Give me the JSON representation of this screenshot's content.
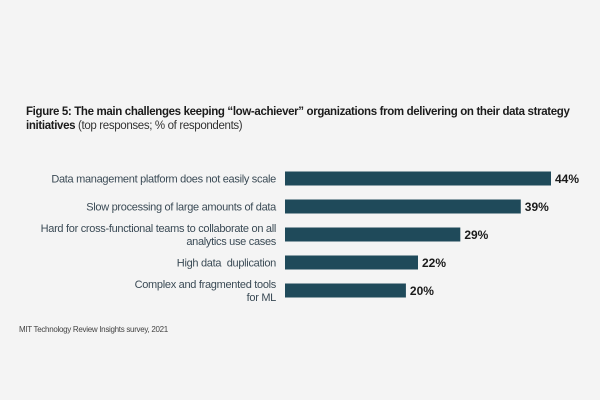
{
  "chart_data": {
    "type": "bar",
    "orientation": "horizontal",
    "title_bold": "Figure 5: The main challenges keeping “low-achiever” organizations from delivering on their data strategy initiatives",
    "title_light": " (top responses; % of respondents)",
    "categories": [
      [
        "Data management platform does not easily scale"
      ],
      [
        "Slow processing of large amounts of data"
      ],
      [
        "Hard for cross-functional teams to collaborate on all",
        "analytics use cases"
      ],
      [
        "High data  duplication"
      ],
      [
        "Complex and fragmented tools",
        "for ML"
      ]
    ],
    "values": [
      44,
      39,
      29,
      22,
      20
    ],
    "value_labels": [
      "44%",
      "39%",
      "29%",
      "22%",
      "20%"
    ],
    "xlim": [
      0,
      44
    ],
    "unit": "%",
    "grid": false,
    "bar_color": "#1f4a5a",
    "source": "MIT Technology Review Insights survey, 2021"
  }
}
